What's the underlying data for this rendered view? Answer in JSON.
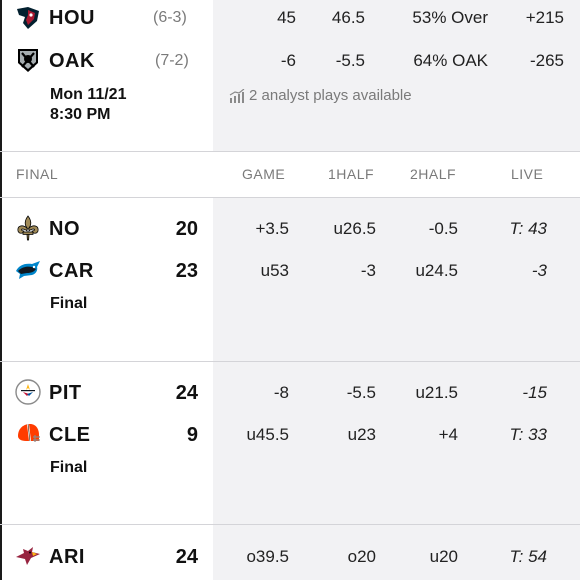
{
  "game_upcoming": {
    "away": {
      "abbr": "HOU",
      "record": "(6-3)",
      "total": "45",
      "first_half": "46.5",
      "consensus": "53% Over",
      "moneyline": "+215"
    },
    "home": {
      "abbr": "OAK",
      "record": "(7-2)",
      "total": "-6",
      "first_half": "-5.5",
      "consensus": "64% OAK",
      "moneyline": "-265"
    },
    "date_line1": "Mon 11/21",
    "date_line2": "8:30 PM",
    "analyst_text": "2 analyst plays available"
  },
  "final_header": {
    "section": "FINAL",
    "columns": [
      "GAME",
      "1HALF",
      "2HALF",
      "LIVE"
    ]
  },
  "games_final": [
    {
      "status": "Final",
      "teams": [
        {
          "abbr": "NO",
          "score": "20",
          "game": "+3.5",
          "half1": "u26.5",
          "half2": "-0.5",
          "live": "T: 43"
        },
        {
          "abbr": "CAR",
          "score": "23",
          "game": "u53",
          "half1": "-3",
          "half2": "u24.5",
          "live": "-3"
        }
      ]
    },
    {
      "status": "Final",
      "teams": [
        {
          "abbr": "PIT",
          "score": "24",
          "game": "-8",
          "half1": "-5.5",
          "half2": "u21.5",
          "live": "-15"
        },
        {
          "abbr": "CLE",
          "score": "9",
          "game": "u45.5",
          "half1": "u23",
          "half2": "+4",
          "live": "T: 33"
        }
      ]
    },
    {
      "teams": [
        {
          "abbr": "ARI",
          "score": "24",
          "game": "o39.5",
          "half1": "o20",
          "half2": "u20",
          "live": "T: 54"
        }
      ]
    }
  ],
  "colors": {
    "band": "#f2f2f4",
    "divider": "#d4d4d8",
    "muted_text": "#7a7a7a",
    "texans_navy": "#03202f",
    "texans_red": "#a71930",
    "saints_gold": "#a08a58",
    "panthers_blue": "#0085ca",
    "steelers_gold": "#ffb612",
    "browns_orange": "#ff3c00",
    "cardinals_red": "#97233f"
  }
}
